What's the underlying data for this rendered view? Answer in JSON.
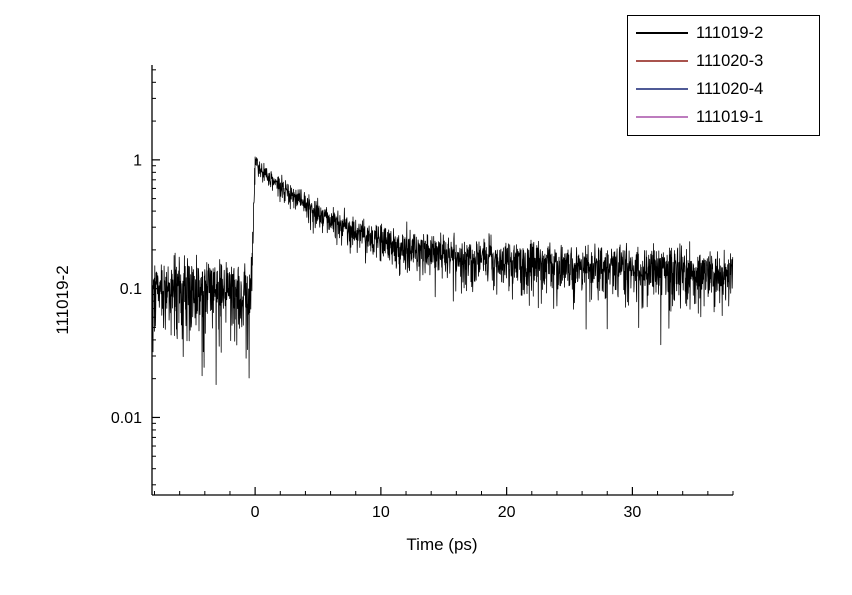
{
  "chart_data": {
    "type": "line",
    "title": "",
    "xlabel": "Time (ps)",
    "ylabel": "111019-2",
    "xscale": "linear",
    "yscale": "log",
    "xlim": [
      -8.2,
      38.0
    ],
    "ylim": [
      0.0025,
      5.45
    ],
    "grid": false,
    "x_major_ticks": [
      {
        "value": 0,
        "label": "0"
      },
      {
        "value": 10,
        "label": "10"
      },
      {
        "value": 20,
        "label": "20"
      },
      {
        "value": 30,
        "label": "30"
      }
    ],
    "x_minor_step": 2,
    "y_major_ticks": [
      {
        "value": 0.01,
        "label": "0.01"
      },
      {
        "value": 0.1,
        "label": "0.1"
      },
      {
        "value": 1,
        "label": "1"
      }
    ],
    "legend": {
      "position": "top-right",
      "entries": [
        {
          "label": "111019-2",
          "color": "#000000"
        },
        {
          "label": "111020-3",
          "color": "#a9534d"
        },
        {
          "label": "111020-4",
          "color": "#4f5a96"
        },
        {
          "label": "111019-1",
          "color": "#bd7cbe"
        }
      ]
    },
    "series": [
      {
        "name": "111019-2",
        "color": "#000000",
        "style": "noisy-line",
        "model": {
          "baseline": 0.095,
          "rise_start": -0.5,
          "peak": 0.95,
          "decay_offset": 0.11,
          "decay_components": [
            {
              "amplitude": 0.707,
              "tau": 3.5
            },
            {
              "amplitude": 0.133,
              "tau": 20
            }
          ],
          "noise_sigma_base": 0.025,
          "noise_sigma_rel": 0.06,
          "sample_step": 0.02,
          "outliers": [
            [
              -3.1,
              0.018
            ]
          ]
        },
        "envelope_points": [
          [
            -8,
            0.095
          ],
          [
            -4,
            0.095
          ],
          [
            -1,
            0.095
          ],
          [
            0,
            0.95
          ],
          [
            1,
            0.77
          ],
          [
            2,
            0.63
          ],
          [
            5,
            0.38
          ],
          [
            10,
            0.23
          ],
          [
            15,
            0.2
          ],
          [
            20,
            0.18
          ],
          [
            25,
            0.16
          ],
          [
            30,
            0.145
          ],
          [
            38,
            0.13
          ]
        ]
      }
    ]
  }
}
